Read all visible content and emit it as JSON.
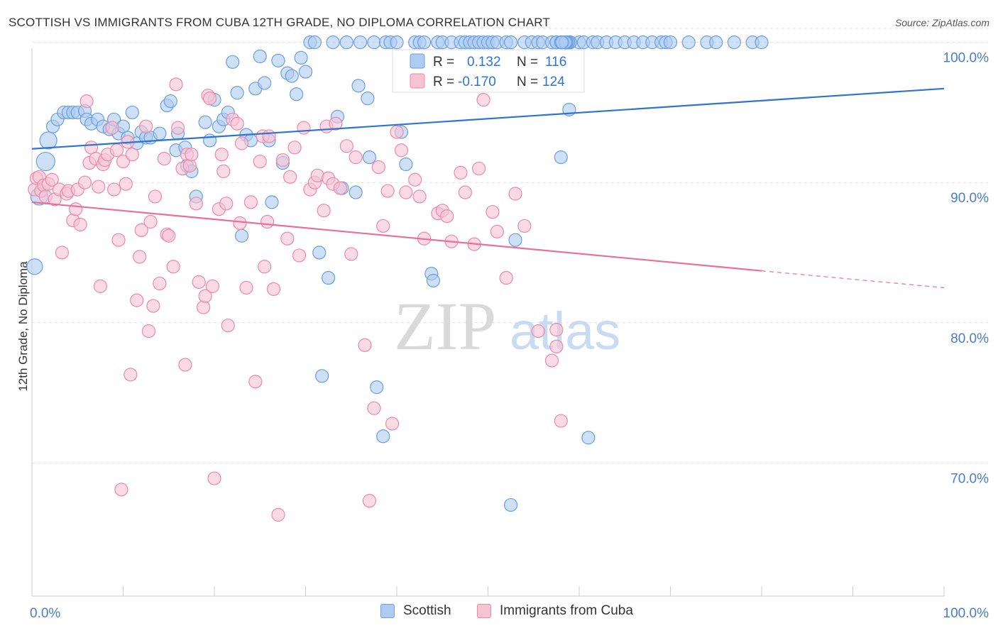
{
  "title": "SCOTTISH VS IMMIGRANTS FROM CUBA 12TH GRADE, NO DIPLOMA CORRELATION CHART",
  "source": "Source: ZipAtlas.com",
  "watermark": {
    "zip": "ZIP",
    "atlas": "atlas"
  },
  "colors": {
    "blue_fill": "#aecbf0",
    "blue_stroke": "#6b9ee0",
    "blue_line": "#2f74d0",
    "pink_fill": "#f6c3d3",
    "pink_stroke": "#ec89a8",
    "pink_line": "#e8709a",
    "grid": "#e0e0e0",
    "axis_text": "#4a7cc9"
  },
  "legend_top": {
    "rows": [
      {
        "r_label": "R =",
        "r_value": "0.132",
        "n_label": "N =",
        "n_value": "116"
      },
      {
        "r_label": "R =",
        "r_value": "-0.170",
        "n_label": "N =",
        "n_value": "124"
      }
    ]
  },
  "legend_bottom": {
    "items": [
      "Scottish",
      "Immigrants from Cuba"
    ]
  },
  "chart_data": {
    "type": "scatter",
    "title": "SCOTTISH VS IMMIGRANTS FROM CUBA 12TH GRADE, NO DIPLOMA CORRELATION CHART",
    "xlabel": "",
    "ylabel": "12th Grade, No Diploma",
    "xlim": [
      0,
      100
    ],
    "ylim": [
      60.5,
      101.5
    ],
    "x_tick_labels": [
      "0.0%",
      "100.0%"
    ],
    "y_ticks": [
      70,
      80,
      90,
      100
    ],
    "y_tick_labels": [
      "70.0%",
      "80.0%",
      "90.0%",
      "100.0%"
    ],
    "grid": "horizontal dashed",
    "legend_position": "top-center",
    "series": [
      {
        "name": "Scottish",
        "r": 0.132,
        "n": 116,
        "trend": {
          "x": [
            0,
            100
          ],
          "y": [
            92.4,
            96.7
          ]
        },
        "points": [
          [
            0.3,
            84.0
          ],
          [
            0.8,
            89.0
          ],
          [
            1.5,
            91.5
          ],
          [
            1.8,
            93.0
          ],
          [
            2.3,
            94.0
          ],
          [
            2.8,
            94.5
          ],
          [
            3.5,
            95.0
          ],
          [
            4.0,
            95.0
          ],
          [
            4.5,
            95.0
          ],
          [
            5.0,
            95.0
          ],
          [
            5.8,
            95.1
          ],
          [
            6.0,
            94.5
          ],
          [
            6.5,
            94.2
          ],
          [
            7.2,
            94.5
          ],
          [
            7.8,
            94.0
          ],
          [
            8.5,
            93.8
          ],
          [
            9.0,
            94.5
          ],
          [
            9.5,
            93.5
          ],
          [
            10.0,
            94.0
          ],
          [
            10.5,
            93.2
          ],
          [
            11.0,
            95.0
          ],
          [
            11.5,
            92.8
          ],
          [
            12.0,
            93.6
          ],
          [
            12.5,
            93.2
          ],
          [
            13.0,
            93.2
          ],
          [
            14.0,
            93.5
          ],
          [
            14.8,
            95.5
          ],
          [
            15.2,
            95.8
          ],
          [
            15.8,
            92.3
          ],
          [
            16.0,
            93.5
          ],
          [
            16.8,
            92.5
          ],
          [
            17.0,
            91.2
          ],
          [
            17.5,
            90.8
          ],
          [
            18.0,
            89.0
          ],
          [
            19.0,
            94.3
          ],
          [
            19.5,
            93.0
          ],
          [
            20.0,
            95.9
          ],
          [
            20.5,
            94.0
          ],
          [
            21.0,
            94.5
          ],
          [
            21.5,
            95.0
          ],
          [
            22.0,
            98.6
          ],
          [
            22.5,
            96.4
          ],
          [
            23.0,
            86.2
          ],
          [
            23.5,
            93.4
          ],
          [
            24.0,
            93.0
          ],
          [
            24.5,
            96.7
          ],
          [
            25.0,
            99.0
          ],
          [
            25.5,
            97.1
          ],
          [
            26.0,
            93.0
          ],
          [
            26.3,
            88.6
          ],
          [
            27.0,
            98.7
          ],
          [
            27.5,
            91.4
          ],
          [
            28.0,
            97.8
          ],
          [
            28.5,
            97.6
          ],
          [
            29.0,
            96.3
          ],
          [
            29.5,
            98.9
          ],
          [
            30.0,
            97.9
          ],
          [
            30.5,
            100.0
          ],
          [
            31.0,
            100.0
          ],
          [
            31.5,
            85.0
          ],
          [
            31.8,
            76.2
          ],
          [
            32.5,
            83.2
          ],
          [
            33.0,
            100.0
          ],
          [
            33.5,
            94.7
          ],
          [
            34.0,
            89.6
          ],
          [
            34.5,
            100.0
          ],
          [
            35.5,
            89.3
          ],
          [
            36.0,
            100.0
          ],
          [
            35.8,
            96.9
          ],
          [
            36.8,
            96.0
          ],
          [
            37.0,
            91.8
          ],
          [
            37.5,
            100.0
          ],
          [
            37.8,
            75.4
          ],
          [
            38.5,
            71.9
          ],
          [
            38.8,
            100.0
          ],
          [
            39.3,
            100.0
          ],
          [
            40.0,
            100.0
          ],
          [
            40.5,
            93.6
          ],
          [
            41.0,
            91.3
          ],
          [
            42.0,
            100.0
          ],
          [
            42.5,
            100.0
          ],
          [
            43.0,
            100.0
          ],
          [
            43.8,
            83.5
          ],
          [
            44.0,
            83.0
          ],
          [
            44.5,
            100.0
          ],
          [
            45.0,
            100.0
          ],
          [
            45.5,
            97.4
          ],
          [
            46.0,
            100.0
          ],
          [
            47.0,
            100.0
          ],
          [
            47.5,
            100.0
          ],
          [
            48.0,
            100.0
          ],
          [
            48.5,
            100.0
          ],
          [
            49.0,
            100.0
          ],
          [
            49.5,
            100.0
          ],
          [
            50.0,
            100.0
          ],
          [
            50.5,
            100.0
          ],
          [
            51.0,
            100.0
          ],
          [
            52.0,
            100.0
          ],
          [
            52.5,
            100.0
          ],
          [
            52.5,
            67.0
          ],
          [
            53.0,
            85.9
          ],
          [
            54.0,
            100.0
          ],
          [
            54.8,
            100.0
          ],
          [
            55.5,
            100.0
          ],
          [
            56.0,
            100.0
          ],
          [
            57.0,
            100.0
          ],
          [
            57.5,
            100.0
          ],
          [
            58.0,
            91.8
          ],
          [
            58.5,
            100.0
          ],
          [
            59.0,
            100.0
          ],
          [
            60.0,
            100.0
          ],
          [
            60.5,
            100.0
          ],
          [
            61.0,
            71.8
          ],
          [
            61.5,
            100.0
          ],
          [
            62.0,
            100.0
          ],
          [
            63.0,
            100.0
          ],
          [
            64.0,
            100.0
          ],
          [
            65.0,
            100.0
          ],
          [
            66.0,
            100.0
          ],
          [
            67.0,
            100.0
          ],
          [
            68.0,
            100.0
          ],
          [
            69.0,
            100.0
          ],
          [
            69.5,
            100.0
          ],
          [
            70.0,
            100.0
          ],
          [
            72.0,
            100.0
          ],
          [
            74.0,
            100.0
          ],
          [
            75.0,
            100.0
          ],
          [
            77.0,
            100.0
          ],
          [
            79.0,
            100.0
          ],
          [
            80.0,
            100.0
          ],
          [
            58.9,
            95.2
          ],
          [
            58.0,
            100.0
          ],
          [
            58.5,
            100.0
          ],
          [
            59.0,
            100.0
          ],
          [
            58.8,
            100.0
          ],
          [
            57.5,
            100.0
          ],
          [
            58.7,
            100.0
          ],
          [
            58.5,
            100.0
          ],
          [
            58.5,
            100.0
          ],
          [
            58.8,
            100.0
          ],
          [
            58.6,
            100.0
          ],
          [
            58.4,
            100.0
          ],
          [
            58.2,
            100.0
          ],
          [
            58.0,
            100.0
          ],
          [
            58.5,
            100.0
          ],
          [
            58.1,
            100.0
          ]
        ]
      },
      {
        "name": "Immigrants from Cuba",
        "r": -0.17,
        "n": 124,
        "trend": {
          "x": [
            0,
            80
          ],
          "y": [
            88.6,
            83.7
          ]
        },
        "trend_dashed": {
          "x": [
            80,
            100
          ],
          "y": [
            83.7,
            82.5
          ]
        },
        "points": [
          [
            0.3,
            89.5
          ],
          [
            0.5,
            90.3
          ],
          [
            0.8,
            90.4
          ],
          [
            1.0,
            89.4
          ],
          [
            1.3,
            89.8
          ],
          [
            1.5,
            89.0
          ],
          [
            1.8,
            89.9
          ],
          [
            2.2,
            90.2
          ],
          [
            2.5,
            88.8
          ],
          [
            3.0,
            89.5
          ],
          [
            3.3,
            85.0
          ],
          [
            3.8,
            89.2
          ],
          [
            4.0,
            89.4
          ],
          [
            4.5,
            87.3
          ],
          [
            4.8,
            88.1
          ],
          [
            5.0,
            89.5
          ],
          [
            5.3,
            87.0
          ],
          [
            5.8,
            90.0
          ],
          [
            6.0,
            95.8
          ],
          [
            6.3,
            91.4
          ],
          [
            6.5,
            92.5
          ],
          [
            7.0,
            91.7
          ],
          [
            7.3,
            89.7
          ],
          [
            7.5,
            82.6
          ],
          [
            7.8,
            91.3
          ],
          [
            8.0,
            91.6
          ],
          [
            8.3,
            92.0
          ],
          [
            8.8,
            93.9
          ],
          [
            9.0,
            89.5
          ],
          [
            9.3,
            92.3
          ],
          [
            9.5,
            85.9
          ],
          [
            9.8,
            68.1
          ],
          [
            10.0,
            91.5
          ],
          [
            10.3,
            89.9
          ],
          [
            10.5,
            92.9
          ],
          [
            10.8,
            76.3
          ],
          [
            11.0,
            92.0
          ],
          [
            11.5,
            81.6
          ],
          [
            11.8,
            84.7
          ],
          [
            12.0,
            86.6
          ],
          [
            12.5,
            94.0
          ],
          [
            12.8,
            79.4
          ],
          [
            13.0,
            87.2
          ],
          [
            13.3,
            81.2
          ],
          [
            13.5,
            89.0
          ],
          [
            14.0,
            82.8
          ],
          [
            14.5,
            91.7
          ],
          [
            14.8,
            86.3
          ],
          [
            15.0,
            86.2
          ],
          [
            15.5,
            84.0
          ],
          [
            15.8,
            97.0
          ],
          [
            16.0,
            93.9
          ],
          [
            16.5,
            91.0
          ],
          [
            16.8,
            77.0
          ],
          [
            17.0,
            92.0
          ],
          [
            17.3,
            91.2
          ],
          [
            17.5,
            92.0
          ],
          [
            18.0,
            88.5
          ],
          [
            18.3,
            82.9
          ],
          [
            18.8,
            81.1
          ],
          [
            19.0,
            81.9
          ],
          [
            19.3,
            96.2
          ],
          [
            19.5,
            96.0
          ],
          [
            19.8,
            82.6
          ],
          [
            20.0,
            68.9
          ],
          [
            20.5,
            88.1
          ],
          [
            20.8,
            92.0
          ],
          [
            21.0,
            90.8
          ],
          [
            21.3,
            88.5
          ],
          [
            21.5,
            79.8
          ],
          [
            22.0,
            94.5
          ],
          [
            22.5,
            94.2
          ],
          [
            22.8,
            87.1
          ],
          [
            23.0,
            92.8
          ],
          [
            23.5,
            82.5
          ],
          [
            24.0,
            88.6
          ],
          [
            24.5,
            75.8
          ],
          [
            25.0,
            91.5
          ],
          [
            25.3,
            93.3
          ],
          [
            25.5,
            84.0
          ],
          [
            25.8,
            87.2
          ],
          [
            26.0,
            93.3
          ],
          [
            26.5,
            82.4
          ],
          [
            27.0,
            66.3
          ],
          [
            27.5,
            91.6
          ],
          [
            28.0,
            86.0
          ],
          [
            28.3,
            90.4
          ],
          [
            28.8,
            92.5
          ],
          [
            29.3,
            84.8
          ],
          [
            29.8,
            93.9
          ],
          [
            30.5,
            89.5
          ],
          [
            31.0,
            90.0
          ],
          [
            31.3,
            90.5
          ],
          [
            32.0,
            88.0
          ],
          [
            32.3,
            94.0
          ],
          [
            32.5,
            90.3
          ],
          [
            33.0,
            89.9
          ],
          [
            33.3,
            94.2
          ],
          [
            33.8,
            89.6
          ],
          [
            34.5,
            92.6
          ],
          [
            35.0,
            84.9
          ],
          [
            35.5,
            91.8
          ],
          [
            36.5,
            78.4
          ],
          [
            37.0,
            67.3
          ],
          [
            37.5,
            73.9
          ],
          [
            38.0,
            91.1
          ],
          [
            38.5,
            86.9
          ],
          [
            39.0,
            89.4
          ],
          [
            39.5,
            72.8
          ],
          [
            40.0,
            93.6
          ],
          [
            40.5,
            92.3
          ],
          [
            41.0,
            89.3
          ],
          [
            42.0,
            90.2
          ],
          [
            42.5,
            89.0
          ],
          [
            43.0,
            86.0
          ],
          [
            44.5,
            87.8
          ],
          [
            45.0,
            88.0
          ],
          [
            45.5,
            87.6
          ],
          [
            46.0,
            85.8
          ],
          [
            47.0,
            90.7
          ],
          [
            47.5,
            89.3
          ],
          [
            48.5,
            85.6
          ],
          [
            49.0,
            91.0
          ],
          [
            50.5,
            87.9
          ],
          [
            51.0,
            86.5
          ],
          [
            52.0,
            83.2
          ],
          [
            53.0,
            89.2
          ],
          [
            54.0,
            86.9
          ],
          [
            55.5,
            79.4
          ],
          [
            57.0,
            77.3
          ],
          [
            57.5,
            78.3
          ],
          [
            58.0,
            73.0
          ],
          [
            57.5,
            79.5
          ],
          [
            49.5,
            95.9
          ]
        ]
      }
    ]
  }
}
